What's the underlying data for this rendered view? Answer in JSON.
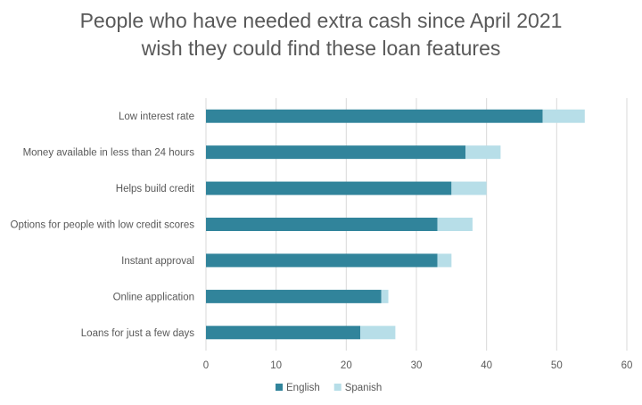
{
  "chart_data": {
    "type": "bar",
    "orientation": "horizontal",
    "stacked": true,
    "title": [
      "People who have needed extra cash since April 2021",
      "wish they could find these loan features"
    ],
    "categories": [
      "Low interest rate",
      "Money available in less than 24 hours",
      "Helps build credit",
      "Options for people with low credit scores",
      "Instant approval",
      "Online application",
      "Loans for just a few days"
    ],
    "series": [
      {
        "name": "English",
        "color": "#31849b",
        "values": [
          48,
          37,
          35,
          33,
          33,
          25,
          22
        ]
      },
      {
        "name": "Spanish",
        "color": "#b7dee8",
        "values": [
          6,
          5,
          5,
          5,
          2,
          1,
          5
        ]
      }
    ],
    "xlim": [
      0,
      60
    ],
    "xticks": [
      0,
      10,
      20,
      30,
      40,
      50,
      60
    ],
    "grid": true,
    "legend": "bottom-center",
    "xlabel": "",
    "ylabel": ""
  }
}
